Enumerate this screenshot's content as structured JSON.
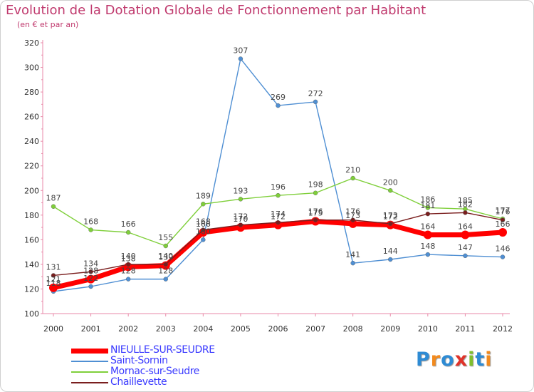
{
  "title": "Evolution de la Dotation Globale de Fonctionnement par Habitant",
  "subtitle": "(en € et par an)",
  "logo_text": "Proxiti",
  "chart_data": {
    "type": "line",
    "x": [
      "2000",
      "2001",
      "2002",
      "2003",
      "2004",
      "2005",
      "2006",
      "2007",
      "2008",
      "2009",
      "2010",
      "2011",
      "2012"
    ],
    "ylim": [
      100,
      320
    ],
    "yticks": [
      100,
      120,
      140,
      160,
      180,
      200,
      220,
      240,
      260,
      280,
      300,
      320
    ],
    "grid": false,
    "legend_position": "bottom-left",
    "series": [
      {
        "name": "NIEULLE-SUR-SEUDRE",
        "color": "#ff0000",
        "values": [
          121,
          128,
          138,
          139,
          166,
          170,
          172,
          175,
          173,
          172,
          164,
          164,
          166
        ],
        "labels": [
          "121",
          "128",
          "138",
          "139",
          "166",
          "170",
          "172",
          "175",
          "173",
          "172",
          "164",
          "164",
          "166"
        ]
      },
      {
        "name": "Saint-Sornin",
        "color": "#4f8fd3",
        "values": [
          118,
          122,
          128,
          128,
          160,
          307,
          269,
          272,
          141,
          144,
          148,
          147,
          146
        ],
        "labels": [
          "118",
          "122",
          "128",
          "128",
          "160",
          "307",
          "269",
          "272",
          "141",
          "144",
          "148",
          "147",
          "146"
        ]
      },
      {
        "name": "Mornac-sur-Seudre",
        "color": "#7fcf3a",
        "values": [
          187,
          168,
          166,
          155,
          189,
          193,
          196,
          198,
          210,
          200,
          186,
          185,
          177
        ],
        "labels": [
          "187",
          "168",
          "166",
          "155",
          "189",
          "193",
          "196",
          "198",
          "210",
          "200",
          "186",
          "185",
          "177"
        ]
      },
      {
        "name": "Chaillevette",
        "color": "#7a1e1e",
        "values": [
          131,
          134,
          140,
          140,
          168,
          172,
          174,
          176,
          176,
          173,
          181,
          182,
          176
        ],
        "labels": [
          "131",
          "134",
          "140",
          "140",
          "168",
          "172",
          "174",
          "176",
          "176",
          "173",
          "181",
          "182",
          "176"
        ]
      }
    ]
  }
}
